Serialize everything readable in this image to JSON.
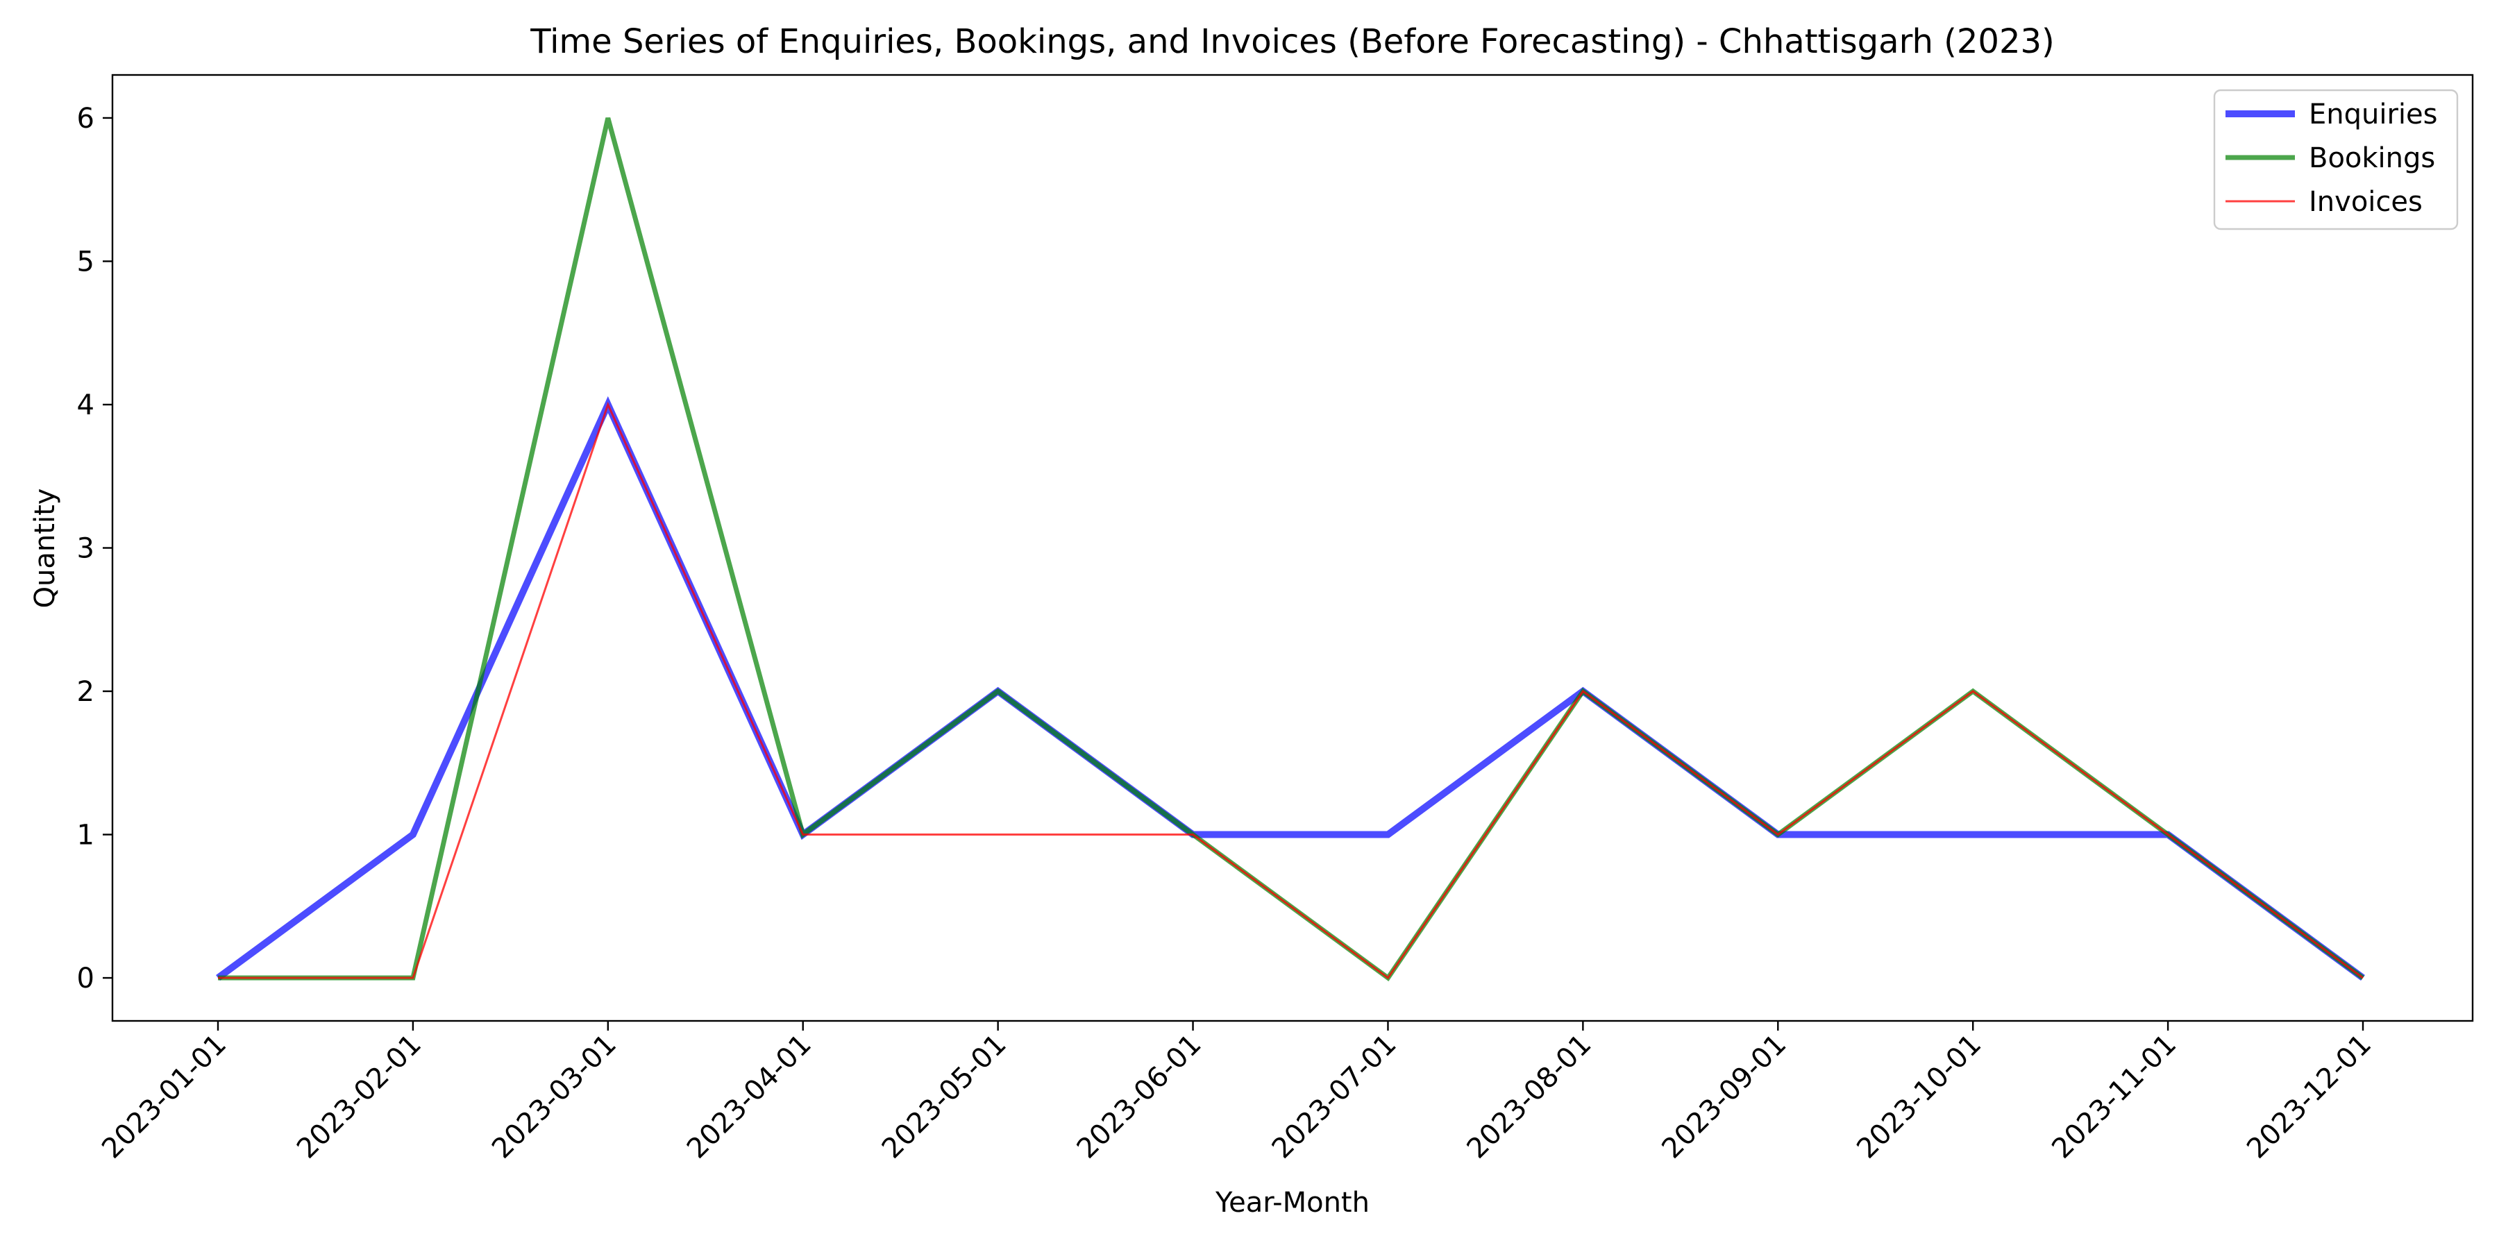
{
  "chart_data": {
    "type": "line",
    "title": "Time Series of Enquiries, Bookings, and Invoices (Before Forecasting) - Chhattisgarh (2023)",
    "xlabel": "Year-Month",
    "ylabel": "Quantity",
    "categories": [
      "2023-01-01",
      "2023-02-01",
      "2023-03-01",
      "2023-04-01",
      "2023-05-01",
      "2023-06-01",
      "2023-07-01",
      "2023-08-01",
      "2023-09-01",
      "2023-10-01",
      "2023-11-01",
      "2023-12-01"
    ],
    "ylim": [
      -0.3,
      6.3
    ],
    "yticks": [
      0,
      1,
      2,
      3,
      4,
      5,
      6
    ],
    "grid": false,
    "legend_position": "top-right",
    "series": [
      {
        "name": "Enquiries",
        "values": [
          0,
          1,
          4,
          1,
          2,
          1,
          1,
          2,
          1,
          1,
          1,
          0
        ],
        "color": "#0000ff",
        "opacity": 0.7,
        "weight": "thick"
      },
      {
        "name": "Bookings",
        "values": [
          0,
          0,
          6,
          1,
          2,
          1,
          0,
          2,
          1,
          2,
          1,
          0
        ],
        "color": "#008000",
        "opacity": 0.7,
        "weight": "medium"
      },
      {
        "name": "Invoices",
        "values": [
          0,
          0,
          4,
          1,
          1,
          1,
          0,
          2,
          1,
          2,
          1,
          0
        ],
        "color": "#ff0000",
        "opacity": 0.75,
        "weight": "thin"
      }
    ]
  }
}
